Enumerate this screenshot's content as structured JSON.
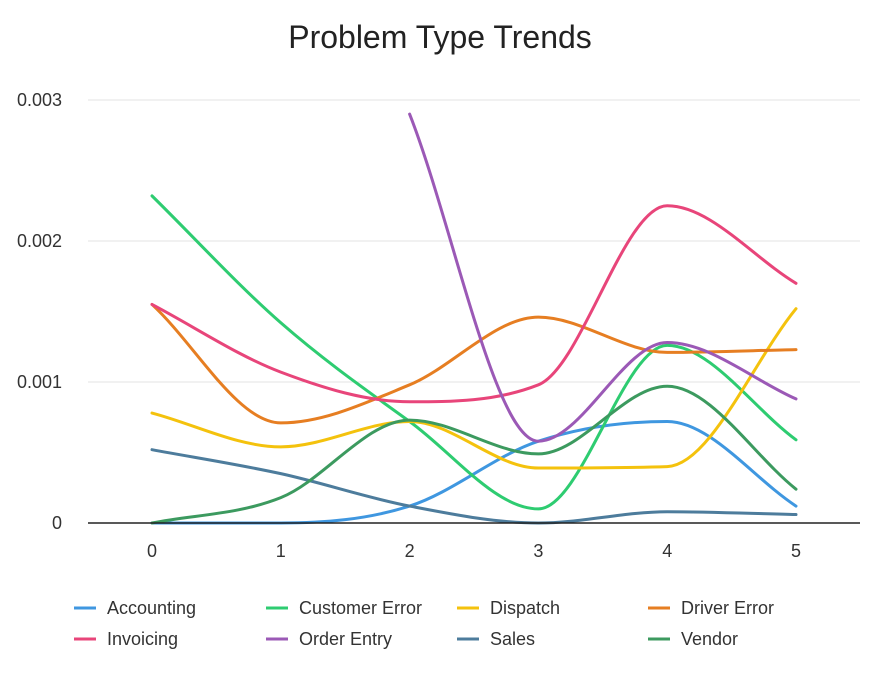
{
  "chart_data": {
    "type": "line",
    "title": "Problem Type Trends",
    "xlabel": "",
    "ylabel": "",
    "x": [
      0,
      1,
      2,
      3,
      4,
      5
    ],
    "xticks": [
      "0",
      "1",
      "2",
      "3",
      "4",
      "5"
    ],
    "ylim": [
      0,
      0.003
    ],
    "yticks": [
      "0",
      "0.001",
      "0.002",
      "0.003"
    ],
    "yticks_values": [
      0,
      0.001,
      0.002,
      0.003
    ],
    "grid": true,
    "smooth": true,
    "legend_position": "bottom",
    "series": [
      {
        "name": "Accounting",
        "color": "#3f97e0",
        "values": [
          0.0,
          0.0,
          0.00012,
          0.00058,
          0.00072,
          0.00012
        ]
      },
      {
        "name": "Customer Error",
        "color": "#2ecc71",
        "values": [
          0.00232,
          0.00142,
          0.00072,
          0.0001,
          0.00126,
          0.00059
        ]
      },
      {
        "name": "Dispatch",
        "color": "#f4c20d",
        "values": [
          0.00078,
          0.00054,
          0.00072,
          0.00039,
          0.0004,
          0.00152
        ]
      },
      {
        "name": "Driver Error",
        "color": "#e67e22",
        "values": [
          0.00155,
          0.00071,
          0.00098,
          0.00146,
          0.00121,
          0.00123
        ]
      },
      {
        "name": "Invoicing",
        "color": "#e8457a",
        "values": [
          0.00155,
          0.00107,
          0.00086,
          0.00098,
          0.00225,
          0.0017
        ]
      },
      {
        "name": "Order Entry",
        "color": "#9b59b6",
        "values": [
          null,
          null,
          0.0029,
          0.00058,
          0.00128,
          0.00088
        ]
      },
      {
        "name": "Sales",
        "color": "#4d7c9c",
        "values": [
          0.00052,
          0.00035,
          0.00012,
          0.0,
          8e-05,
          6e-05
        ]
      },
      {
        "name": "Vendor",
        "color": "#3c9a5f",
        "values": [
          0.0,
          0.00018,
          0.00073,
          0.00049,
          0.00097,
          0.00024
        ]
      }
    ]
  }
}
